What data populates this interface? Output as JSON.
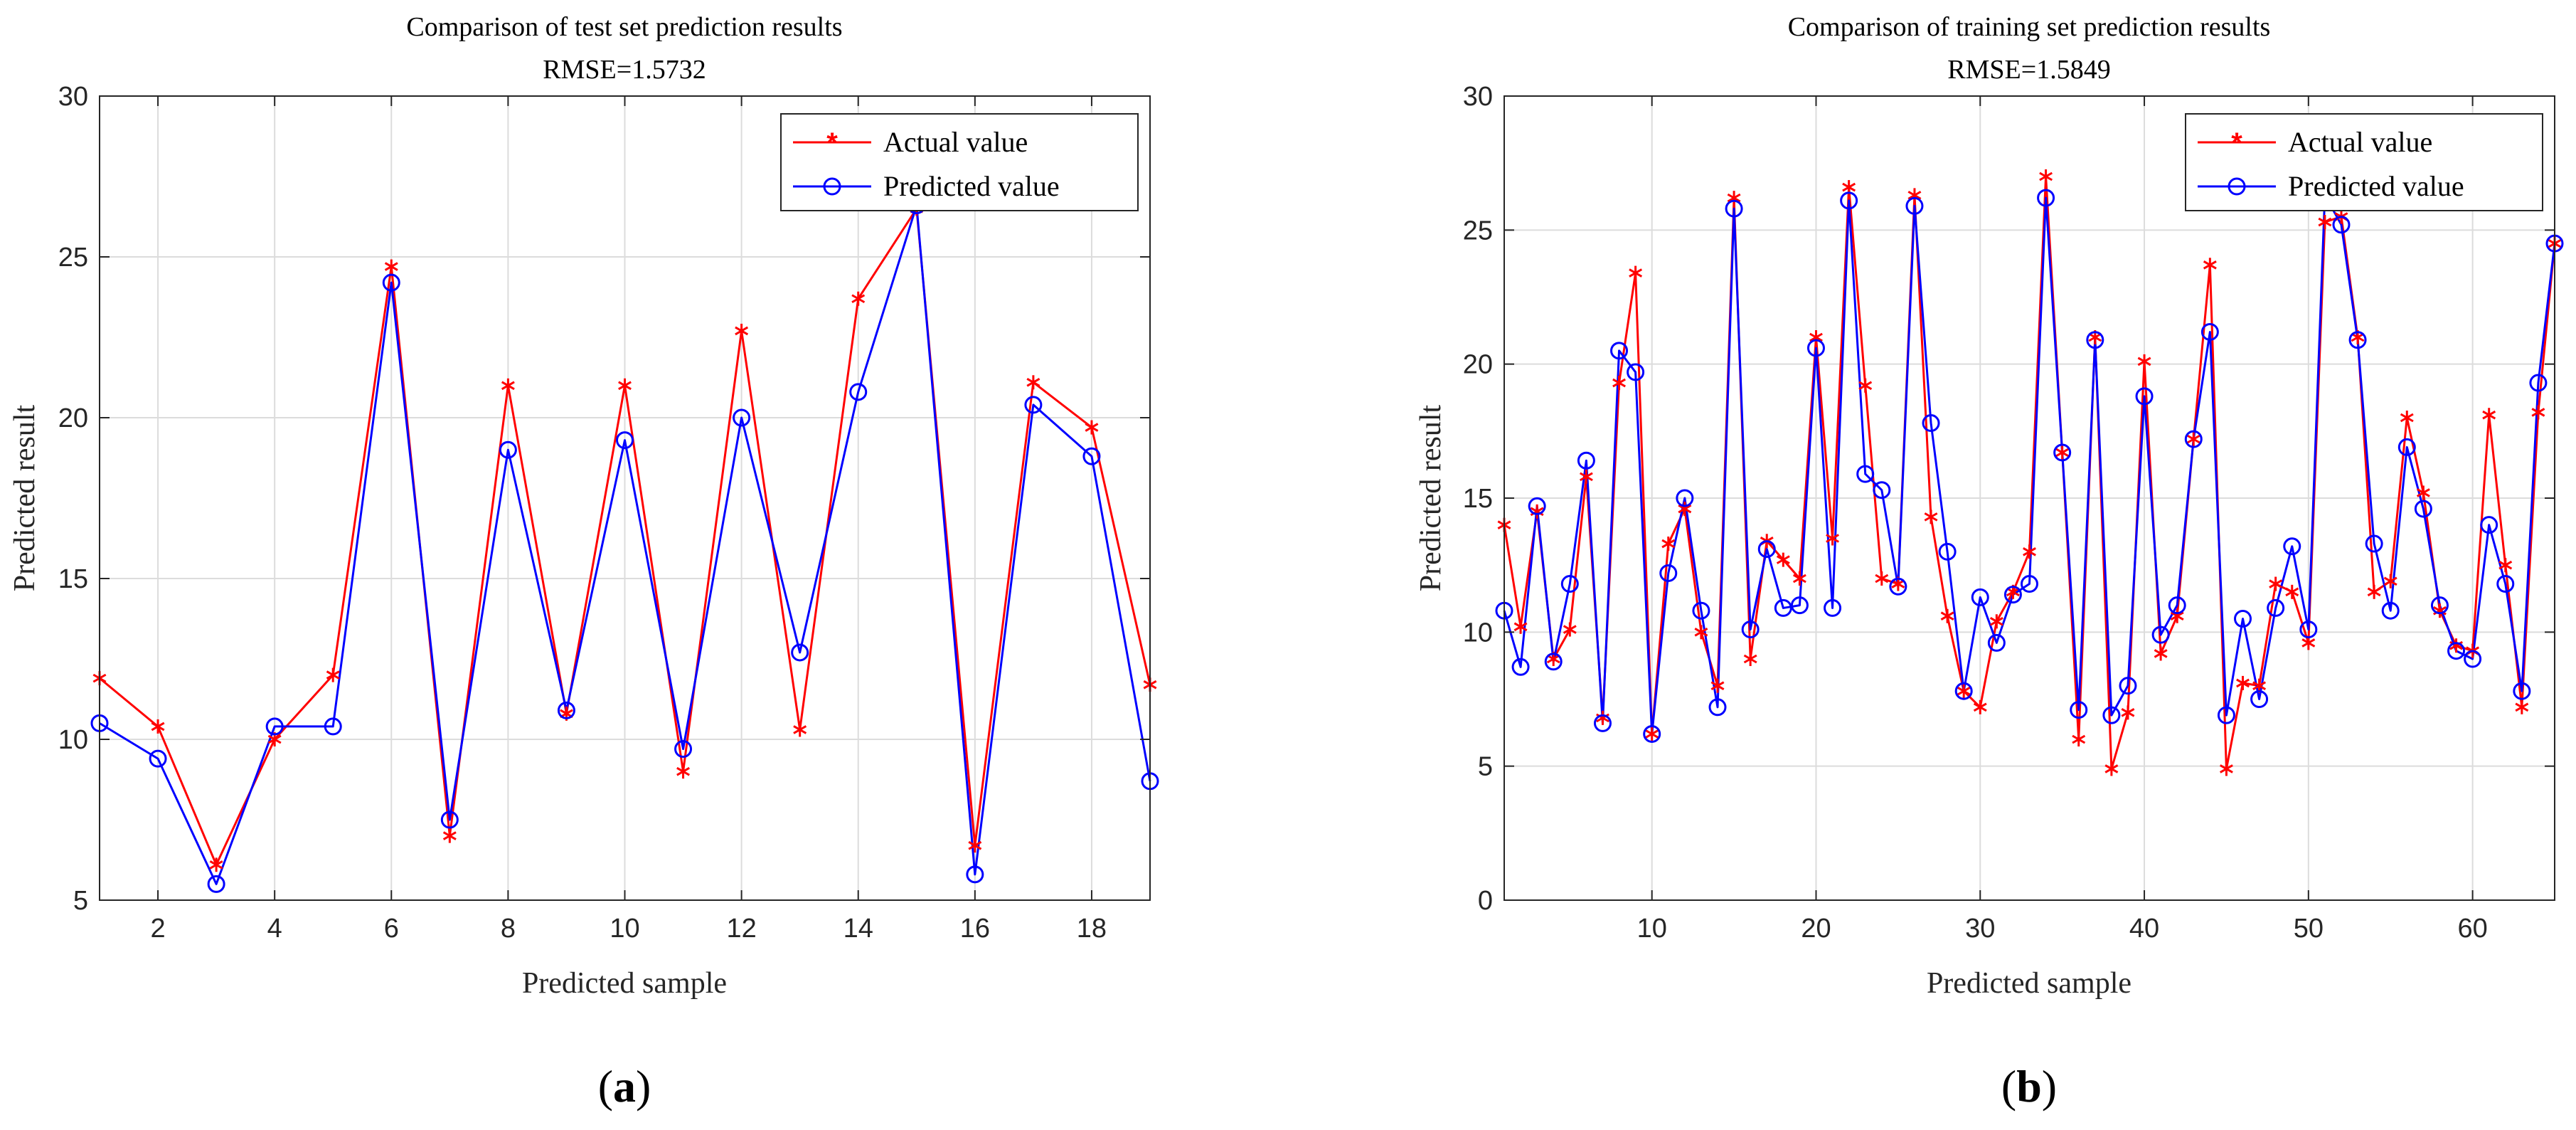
{
  "colors": {
    "actual": "#ff0000",
    "predicted": "#0000ff",
    "grid": "#dcdcdc",
    "axis": "#262626"
  },
  "chart_data": [
    {
      "type": "line",
      "panel_label": "(a)",
      "panel_letter": "a",
      "title": "Comparison of test set prediction results",
      "subtitle": "RMSE=1.5732",
      "xlabel": "Predicted sample",
      "ylabel": "Predicted result",
      "xlim": [
        1,
        19
      ],
      "ylim": [
        5,
        30
      ],
      "xticks": [
        2,
        4,
        6,
        8,
        10,
        12,
        14,
        16,
        18
      ],
      "yticks": [
        5,
        10,
        15,
        20,
        25,
        30
      ],
      "grid": true,
      "legend_position": "top-right",
      "x": [
        1,
        2,
        3,
        4,
        5,
        6,
        7,
        8,
        9,
        10,
        11,
        12,
        13,
        14,
        15,
        16,
        17,
        18,
        19
      ],
      "series": [
        {
          "name": "Actual value",
          "marker": "asterisk",
          "color": "#ff0000",
          "values": [
            11.9,
            10.4,
            6.1,
            10.0,
            12.0,
            24.7,
            7.0,
            21.0,
            10.8,
            21.0,
            9.0,
            22.7,
            10.3,
            23.7,
            26.5,
            6.7,
            21.1,
            19.7,
            11.7
          ]
        },
        {
          "name": "Predicted value",
          "marker": "circle",
          "color": "#0000ff",
          "values": [
            10.5,
            9.4,
            5.5,
            10.4,
            10.4,
            24.2,
            7.5,
            19.0,
            10.9,
            19.3,
            9.7,
            20.0,
            12.7,
            20.8,
            26.6,
            5.8,
            20.4,
            18.8,
            8.7
          ]
        }
      ]
    },
    {
      "type": "line",
      "panel_label": "(b)",
      "panel_letter": "b",
      "title": "Comparison of training set prediction results",
      "subtitle": "RMSE=1.5849",
      "xlabel": "Predicted sample",
      "ylabel": "Predicted result",
      "xlim": [
        1,
        65
      ],
      "ylim": [
        0,
        30
      ],
      "xticks": [
        10,
        20,
        30,
        40,
        50,
        60
      ],
      "yticks": [
        0,
        5,
        10,
        15,
        20,
        25,
        30
      ],
      "grid": true,
      "legend_position": "top-right",
      "x": [
        1,
        2,
        3,
        4,
        5,
        6,
        7,
        8,
        9,
        10,
        11,
        12,
        13,
        14,
        15,
        16,
        17,
        18,
        19,
        20,
        21,
        22,
        23,
        24,
        25,
        26,
        27,
        28,
        29,
        30,
        31,
        32,
        33,
        34,
        35,
        36,
        37,
        38,
        39,
        40,
        41,
        42,
        43,
        44,
        45,
        46,
        47,
        48,
        49,
        50,
        51,
        52,
        53,
        54,
        55,
        56,
        57,
        58,
        59,
        60,
        61,
        62,
        63,
        64,
        65
      ],
      "series": [
        {
          "name": "Actual value",
          "marker": "asterisk",
          "color": "#ff0000",
          "values": [
            14.0,
            10.2,
            14.5,
            9.0,
            10.1,
            15.8,
            6.8,
            19.3,
            23.4,
            6.2,
            13.3,
            14.6,
            10.0,
            8.0,
            26.2,
            9.0,
            13.4,
            12.7,
            12.0,
            21.0,
            13.5,
            26.6,
            19.2,
            12.0,
            11.8,
            26.3,
            14.3,
            10.6,
            7.8,
            7.2,
            10.4,
            11.5,
            13.0,
            27.0,
            16.7,
            6.0,
            21.0,
            4.9,
            7.0,
            20.1,
            9.2,
            10.6,
            17.2,
            23.7,
            4.9,
            8.1,
            8.0,
            11.8,
            11.5,
            9.6,
            25.3,
            25.5,
            21.0,
            11.5,
            11.9,
            18.0,
            15.2,
            10.8,
            9.5,
            9.3,
            18.1,
            12.5,
            7.2,
            18.2,
            24.5
          ]
        },
        {
          "name": "Predicted value",
          "marker": "circle",
          "color": "#0000ff",
          "values": [
            10.8,
            8.7,
            14.7,
            8.9,
            11.8,
            16.4,
            6.6,
            20.5,
            19.7,
            6.2,
            12.2,
            15.0,
            10.8,
            7.2,
            25.8,
            10.1,
            13.1,
            10.9,
            11.0,
            20.6,
            10.9,
            26.1,
            15.9,
            15.3,
            11.7,
            25.9,
            17.8,
            13.0,
            7.8,
            11.3,
            9.6,
            11.4,
            11.8,
            26.2,
            16.7,
            7.1,
            20.9,
            6.9,
            8.0,
            18.8,
            9.9,
            11.0,
            17.2,
            21.2,
            6.9,
            10.5,
            7.5,
            10.9,
            13.2,
            10.1,
            26.3,
            25.2,
            20.9,
            13.3,
            10.8,
            16.9,
            14.6,
            11.0,
            9.3,
            9.0,
            14.0,
            11.8,
            7.8,
            19.3,
            24.5
          ]
        }
      ]
    }
  ]
}
